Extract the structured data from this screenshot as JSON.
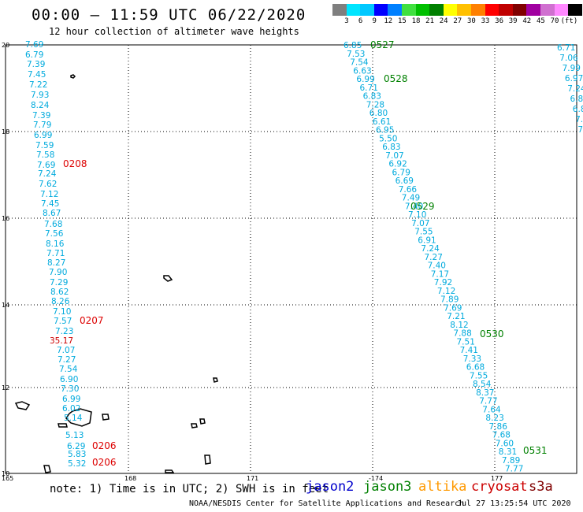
{
  "header": {
    "title": "00:00 – 11:59 UTC 06/22/2020",
    "subtitle": "12 hour collection of altimeter wave heights"
  },
  "colorbar": {
    "colors": [
      "#7f7f7f",
      "#00e5ff",
      "#00c8ff",
      "#0000ff",
      "#0080ff",
      "#40e040",
      "#00c000",
      "#008000",
      "#ffff00",
      "#ffc000",
      "#ff8000",
      "#ff0000",
      "#c00000",
      "#800000",
      "#a000a0",
      "#d070d0",
      "#ff88ff",
      "#000000"
    ],
    "labels": [
      "3",
      "6",
      "9",
      "12",
      "15",
      "18",
      "21",
      "24",
      "27",
      "30",
      "33",
      "36",
      "39",
      "42",
      "45",
      "70",
      "(ft)"
    ]
  },
  "axes": {
    "lat_labels": [
      "20",
      "18",
      "16",
      "14",
      "12",
      "10"
    ],
    "lon_labels": [
      "165",
      "168",
      "171",
      "-174",
      "177"
    ]
  },
  "tracks": {
    "west_values": [
      "7.69",
      "6.79",
      "7.39",
      "7.45",
      "7.22",
      "7.93",
      "8.24",
      "7.39",
      "7.79",
      "6.99",
      "7.59",
      "7.58",
      "7.69",
      "7.24",
      "7.62",
      "7.12",
      "7.45",
      "8.67",
      "7.68",
      "7.56",
      "8.16",
      "7.71",
      "8.27",
      "7.90",
      "7.29",
      "8.62",
      "8.26",
      "7.10",
      "7.57",
      "7.23",
      "35.17",
      "7.07",
      "7.27",
      "7.54",
      "6.90",
      "7.30",
      "6.99",
      "6.02",
      "5.14",
      "5.13",
      "6.29",
      "5.83",
      "5.32"
    ],
    "middle_values": [
      "6.85",
      "7.53",
      "7.54",
      "6.63",
      "6.99",
      "6.71",
      "6.83",
      "7.28",
      "6.80",
      "6.61",
      "6.95",
      "5.50",
      "6.83",
      "7.07",
      "6.92",
      "6.79",
      "6.69",
      "7.66",
      "7.49",
      "7.40",
      "7.10",
      "7.07",
      "7.55",
      "6.91",
      "7.24",
      "7.27",
      "7.40",
      "7.17",
      "7.92",
      "7.12",
      "7.89",
      "7.69",
      "7.21",
      "8.12",
      "7.88",
      "7.51",
      "7.41",
      "7.33",
      "6.68",
      "7.55",
      "8.54",
      "8.37",
      "7.77",
      "7.64",
      "8.23",
      "7.86",
      "7.68",
      "7.60",
      "8.31",
      "7.89",
      "7.77"
    ],
    "east_values": [
      "6.71",
      "7.06",
      "7.99",
      "6.97",
      "7.24",
      "6.8",
      "6.8",
      "7.",
      "7."
    ],
    "west_labels": [
      "0208",
      "0207",
      "0206",
      "0206"
    ],
    "middle_labels": [
      "0527",
      "0528",
      "0529",
      "0530",
      "0531"
    ]
  },
  "legend": {
    "note": "note:  1) Time is in UTC;  2) SWH is in feet",
    "satellites": [
      {
        "name": "jason2",
        "color": "#0000cc"
      },
      {
        "name": "jason3",
        "color": "#008000"
      },
      {
        "name": "altika",
        "color": "#ff9900"
      },
      {
        "name": "cryosat",
        "color": "#cc0000"
      },
      {
        "name": "s3a",
        "color": "#800000"
      }
    ]
  },
  "footer": {
    "credit": "NOAA/NESDIS Center for Satellite Applications and Research",
    "timestamp": "Jul 27 13:25:54 UTC 2020"
  },
  "colors": {
    "track_value": "#00aadd",
    "outlier_value": "#cc0000",
    "jason3_label": "#008000",
    "cryosat_label": "#dd0000"
  }
}
